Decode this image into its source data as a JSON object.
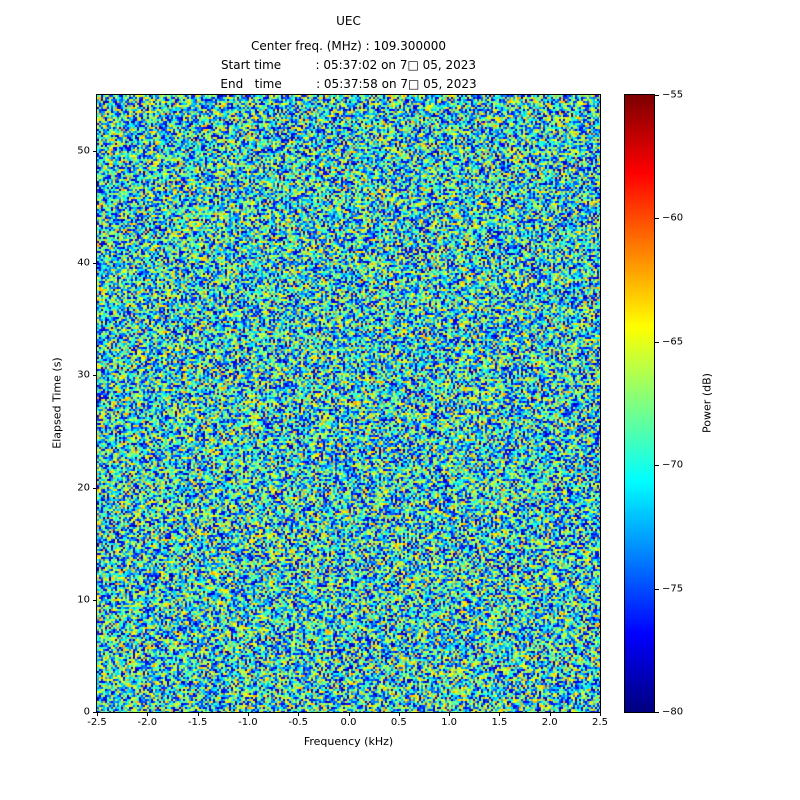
{
  "title": "UEC",
  "header": {
    "lines": [
      "Center freq. (MHz) : 109.300000",
      "Start time         : 05:37:02 on 7□ 05, 2023",
      "End   time         : 05:37:58 on 7□ 05, 2023"
    ]
  },
  "chart_data": {
    "type": "heatmap",
    "title": "UEC",
    "subtitle_center_freq_mhz": 109.3,
    "start_time": "05:37:02 on 7□ 05, 2023",
    "end_time": "05:37:58 on 7□ 05, 2023",
    "xlabel": "Frequency (kHz)",
    "ylabel": "Elapsed Time (s)",
    "colorbar_label": "Power (dB)",
    "x_range": [
      -2.5,
      2.5
    ],
    "y_range": [
      0,
      55
    ],
    "x_ticks": [
      "-2.5",
      "-2.0",
      "-1.5",
      "-1.0",
      "-0.5",
      "0.0",
      "0.5",
      "1.0",
      "1.5",
      "2.0",
      "2.5"
    ],
    "y_ticks": [
      "0",
      "10",
      "20",
      "30",
      "40",
      "50"
    ],
    "color_range": [
      -80,
      -55
    ],
    "colorbar_ticks": [
      "−55",
      "−60",
      "−65",
      "−70",
      "−75",
      "−80"
    ],
    "colormap": "jet",
    "grid": false,
    "legend": "none",
    "data_summary": "Dense speckled spectrogram noise, uniform across the whole extent; power values mostly between -79 and -62 dB (cyan/green with scattered dark-blue and yellow pixels); no visible signal features.",
    "noise_db_range": [
      -79,
      -62
    ]
  }
}
